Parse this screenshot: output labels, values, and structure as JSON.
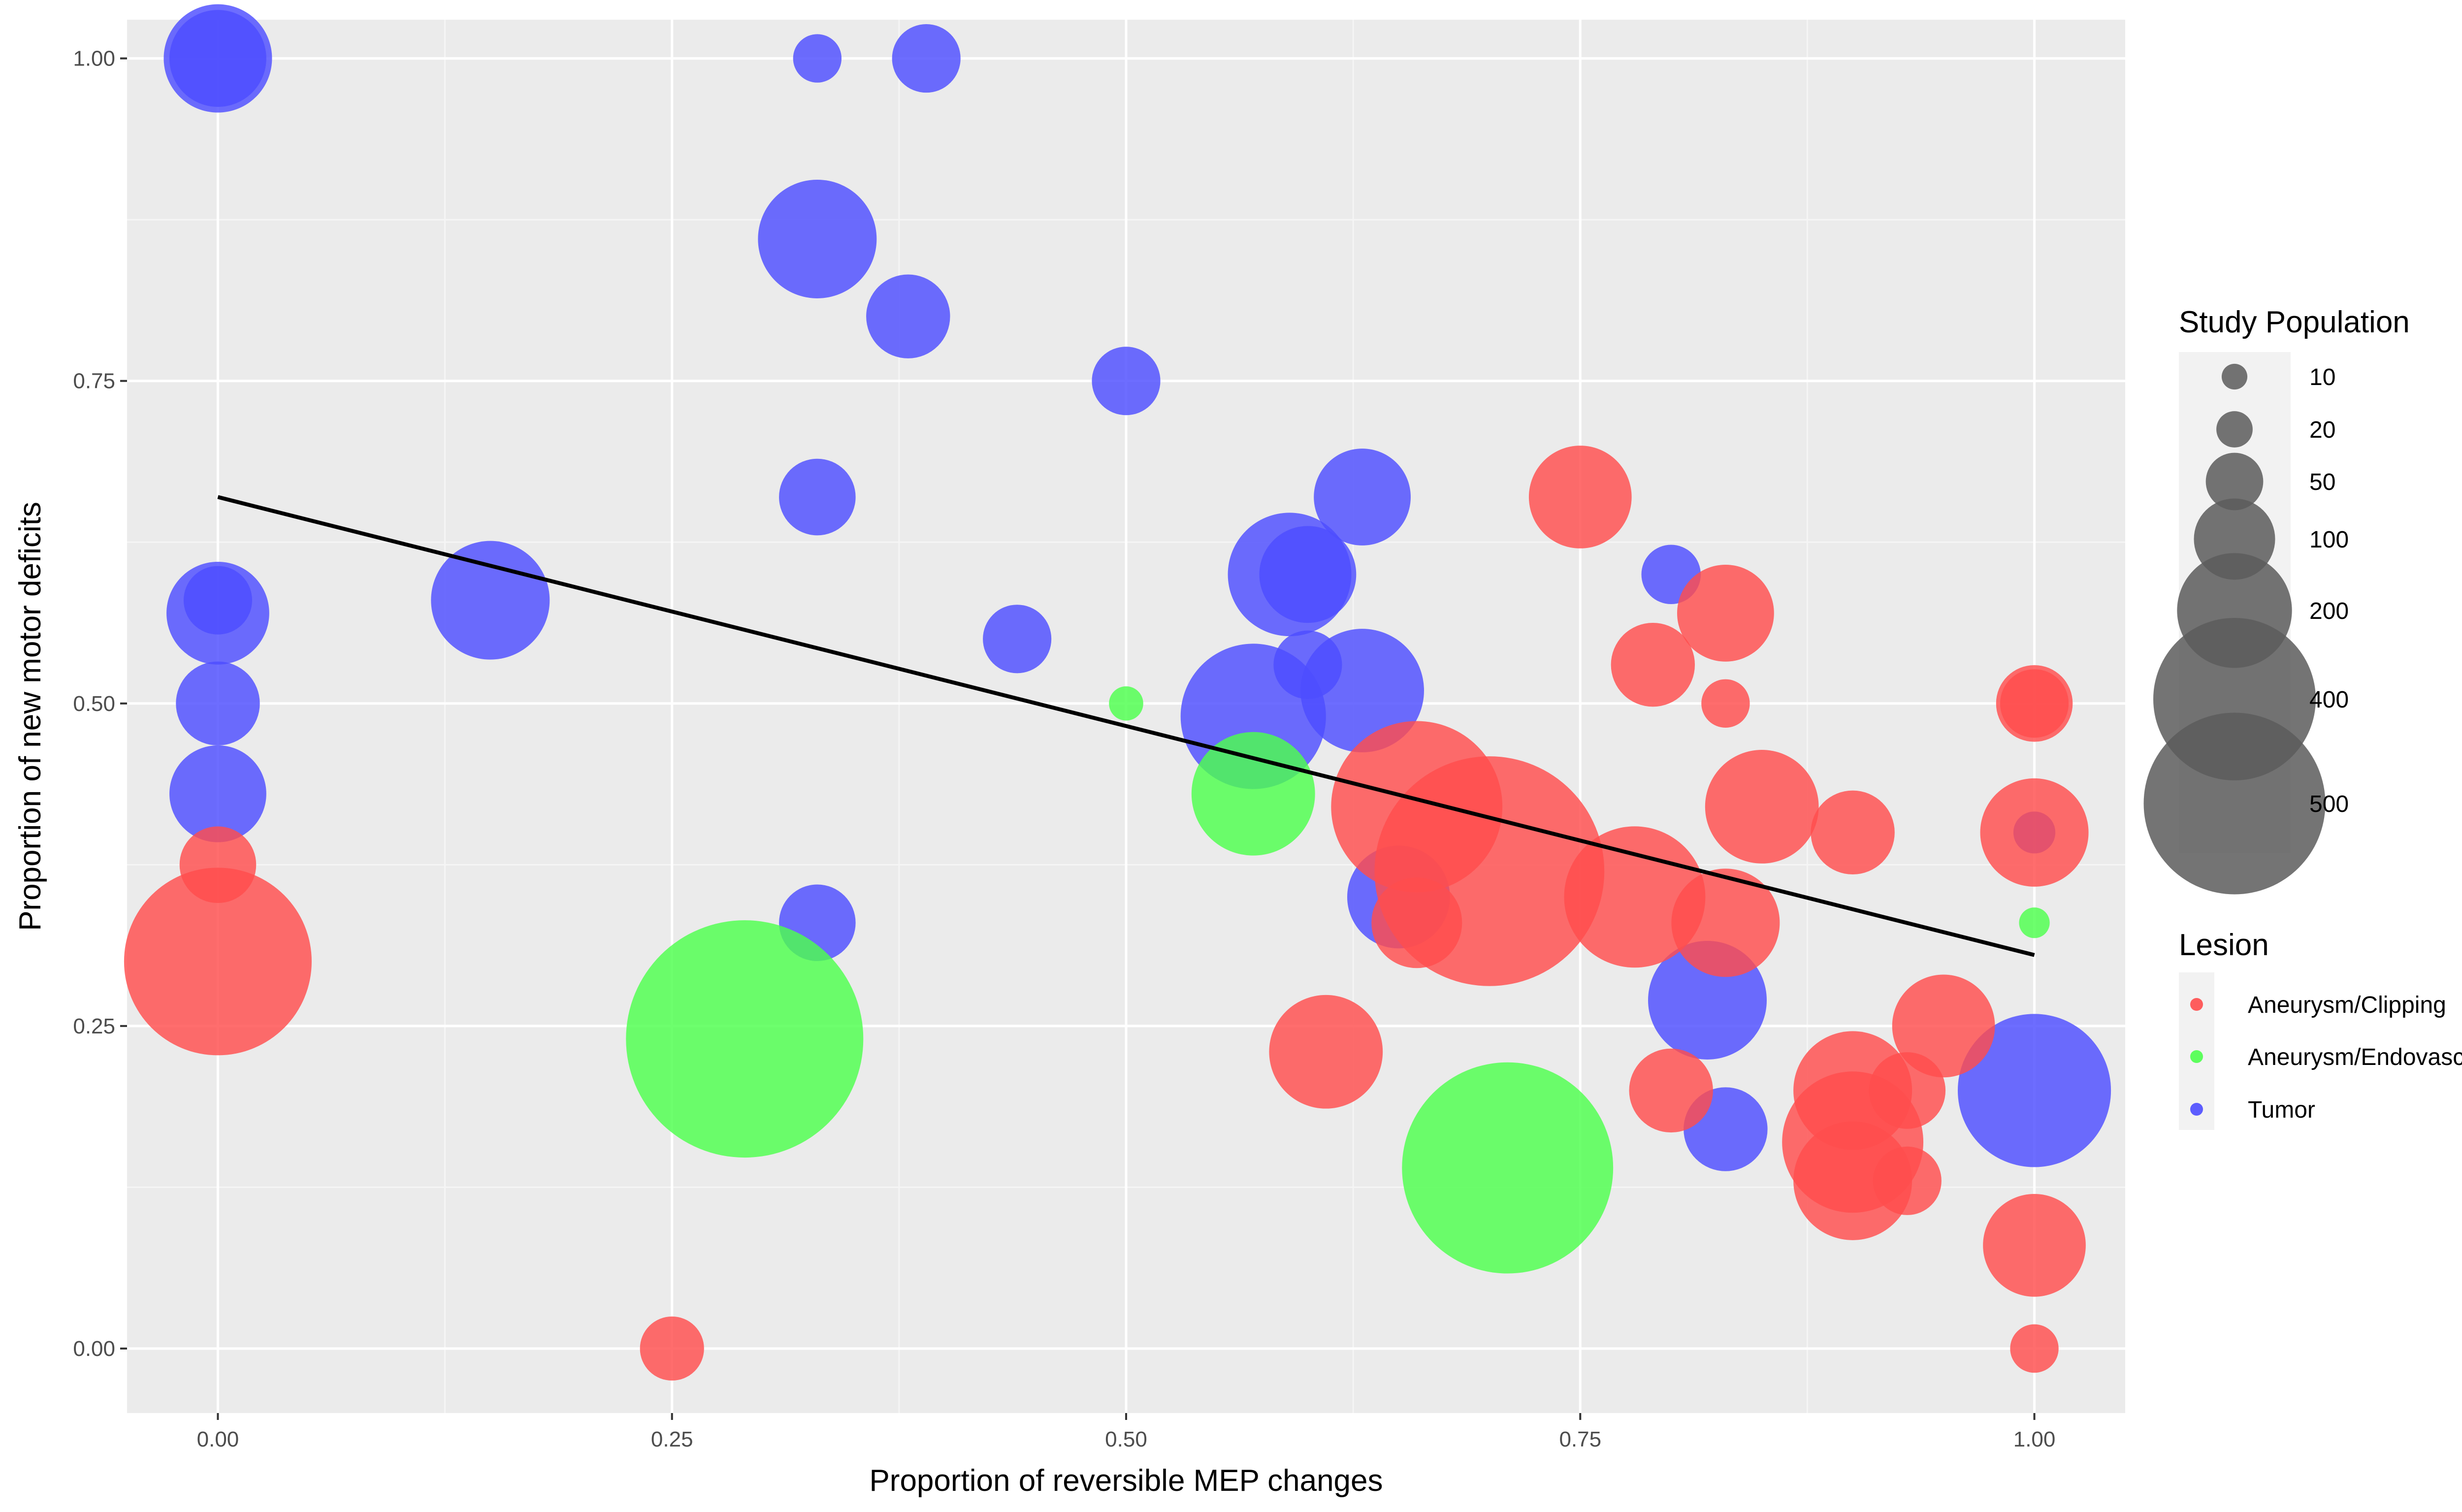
{
  "chart_data": {
    "type": "scatter",
    "title": "",
    "xlabel": "Proportion of reversible MEP changes",
    "ylabel": "Proportion of new motor deficits",
    "xlim": [
      -0.05,
      1.05
    ],
    "ylim": [
      -0.05,
      1.03
    ],
    "x_ticks": [
      "0.00",
      "0.25",
      "0.50",
      "0.75",
      "1.00"
    ],
    "y_ticks": [
      "0.00",
      "0.25",
      "0.50",
      "0.75",
      "1.00"
    ],
    "grid": true,
    "trend_line": {
      "x1": 0.0,
      "y1": 0.66,
      "x2": 1.0,
      "y2": 0.305
    },
    "size_legend": {
      "title": "Study Population",
      "entries": [
        "10",
        "20",
        "50",
        "100",
        "200",
        "400",
        "500"
      ],
      "values": [
        10,
        20,
        50,
        100,
        200,
        400,
        500
      ]
    },
    "color_legend": {
      "title": "Lesion",
      "entries": [
        "Aneurysm/Clipping",
        "Aneurysm/Endovascular",
        "Tumor"
      ]
    },
    "colors": {
      "Aneurysm/Clipping": "#ff4d4d",
      "Aneurysm/Endovascular": "#4dff4d",
      "Tumor": "#4d4dff"
    },
    "series": [
      {
        "name": "Tumor",
        "points": [
          {
            "x": 0.0,
            "y": 1.0,
            "size": 100
          },
          {
            "x": 0.0,
            "y": 1.0,
            "size": 80
          },
          {
            "x": 0.33,
            "y": 1.0,
            "size": 20
          },
          {
            "x": 0.39,
            "y": 1.0,
            "size": 40
          },
          {
            "x": 0.33,
            "y": 0.86,
            "size": 120
          },
          {
            "x": 0.38,
            "y": 0.8,
            "size": 60
          },
          {
            "x": 0.5,
            "y": 0.75,
            "size": 40
          },
          {
            "x": 0.33,
            "y": 0.66,
            "size": 50
          },
          {
            "x": 0.63,
            "y": 0.66,
            "size": 80
          },
          {
            "x": 0.0,
            "y": 0.58,
            "size": 40
          },
          {
            "x": 0.0,
            "y": 0.57,
            "size": 90
          },
          {
            "x": 0.15,
            "y": 0.58,
            "size": 120
          },
          {
            "x": 0.59,
            "y": 0.6,
            "size": 130
          },
          {
            "x": 0.6,
            "y": 0.6,
            "size": 80
          },
          {
            "x": 0.8,
            "y": 0.6,
            "size": 30
          },
          {
            "x": 0.44,
            "y": 0.55,
            "size": 40
          },
          {
            "x": 0.6,
            "y": 0.53,
            "size": 40
          },
          {
            "x": 0.63,
            "y": 0.51,
            "size": 130
          },
          {
            "x": 0.0,
            "y": 0.5,
            "size": 60
          },
          {
            "x": 0.57,
            "y": 0.49,
            "size": 180
          },
          {
            "x": 0.0,
            "y": 0.43,
            "size": 80
          },
          {
            "x": 0.65,
            "y": 0.35,
            "size": 90
          },
          {
            "x": 0.33,
            "y": 0.33,
            "size": 50
          },
          {
            "x": 0.82,
            "y": 0.27,
            "size": 120
          },
          {
            "x": 0.83,
            "y": 0.17,
            "size": 60
          },
          {
            "x": 1.0,
            "y": 0.4,
            "size": 15
          },
          {
            "x": 1.0,
            "y": 0.2,
            "size": 200
          }
        ]
      },
      {
        "name": "Aneurysm/Endovascular",
        "points": [
          {
            "x": 0.5,
            "y": 0.5,
            "size": 10
          },
          {
            "x": 0.57,
            "y": 0.43,
            "size": 130
          },
          {
            "x": 0.29,
            "y": 0.24,
            "size": 480
          },
          {
            "x": 0.71,
            "y": 0.14,
            "size": 380
          },
          {
            "x": 1.0,
            "y": 0.33,
            "size": 8
          }
        ]
      },
      {
        "name": "Aneurysm/Clipping",
        "points": [
          {
            "x": 0.0,
            "y": 0.375,
            "size": 50
          },
          {
            "x": 0.0,
            "y": 0.3,
            "size": 300
          },
          {
            "x": 0.25,
            "y": 0.0,
            "size": 35
          },
          {
            "x": 0.75,
            "y": 0.66,
            "size": 90
          },
          {
            "x": 0.83,
            "y": 0.57,
            "size": 80
          },
          {
            "x": 0.79,
            "y": 0.53,
            "size": 60
          },
          {
            "x": 0.83,
            "y": 0.5,
            "size": 20
          },
          {
            "x": 1.0,
            "y": 0.5,
            "size": 50
          },
          {
            "x": 1.0,
            "y": 0.5,
            "size": 40
          },
          {
            "x": 0.66,
            "y": 0.42,
            "size": 250
          },
          {
            "x": 0.85,
            "y": 0.42,
            "size": 110
          },
          {
            "x": 0.7,
            "y": 0.37,
            "size": 450
          },
          {
            "x": 0.9,
            "y": 0.4,
            "size": 60
          },
          {
            "x": 1.0,
            "y": 0.4,
            "size": 100
          },
          {
            "x": 0.78,
            "y": 0.35,
            "size": 170
          },
          {
            "x": 0.66,
            "y": 0.33,
            "size": 70
          },
          {
            "x": 0.83,
            "y": 0.33,
            "size": 100
          },
          {
            "x": 0.95,
            "y": 0.25,
            "size": 90
          },
          {
            "x": 0.61,
            "y": 0.23,
            "size": 110
          },
          {
            "x": 0.8,
            "y": 0.2,
            "size": 60
          },
          {
            "x": 0.9,
            "y": 0.2,
            "size": 120
          },
          {
            "x": 0.93,
            "y": 0.2,
            "size": 50
          },
          {
            "x": 0.9,
            "y": 0.16,
            "size": 170
          },
          {
            "x": 0.9,
            "y": 0.13,
            "size": 120
          },
          {
            "x": 0.93,
            "y": 0.13,
            "size": 40
          },
          {
            "x": 1.0,
            "y": 0.08,
            "size": 90
          },
          {
            "x": 1.0,
            "y": 0.0,
            "size": 20
          }
        ]
      }
    ]
  }
}
